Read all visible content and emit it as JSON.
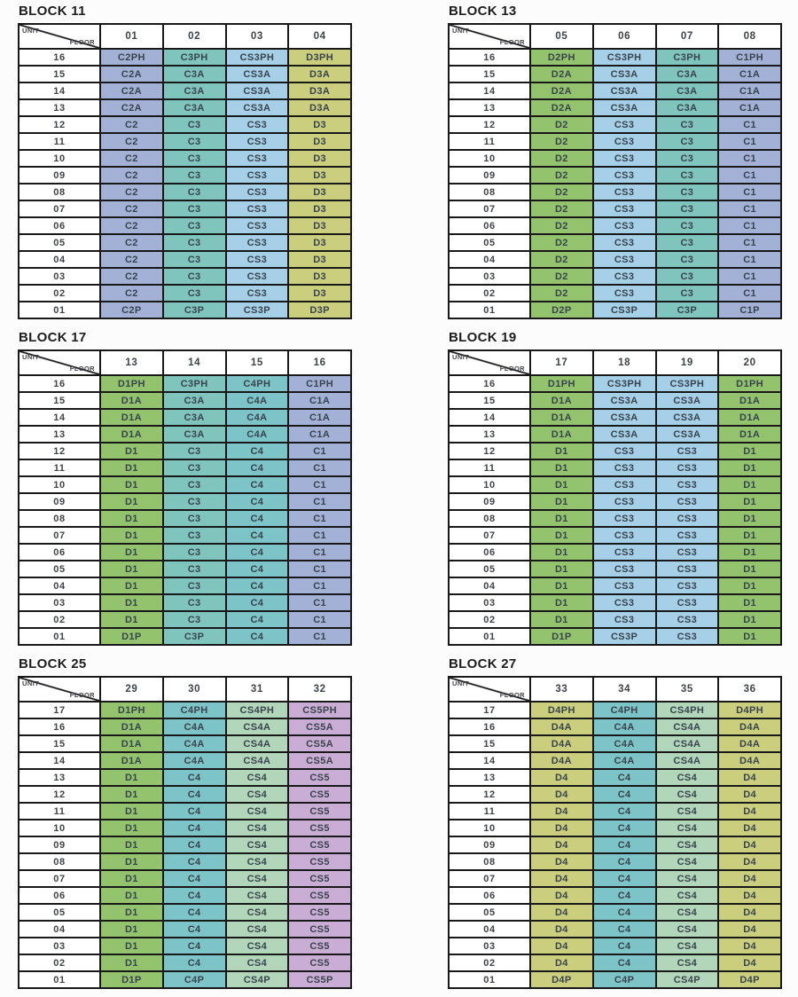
{
  "corner_header": {
    "unit_label": "UNIT",
    "floor_label": "FLOOR"
  },
  "unit_type_colors": {
    "C1": "#a3b1d7",
    "C2": "#a3b1d7",
    "C3": "#80c5bd",
    "C4": "#7dc4c8",
    "CS3": "#a6cfe8",
    "CS4": "#b2d6ba",
    "CS5": "#c9add4",
    "D1": "#93c46d",
    "D2": "#93c46d",
    "D3": "#cbcf7d",
    "D4": "#cbcf7d"
  },
  "border_color": "#181818",
  "blocks": [
    {
      "title": "BLOCK 11",
      "units": [
        "01",
        "02",
        "03",
        "04"
      ],
      "floors": [
        "16",
        "15",
        "14",
        "13",
        "12",
        "11",
        "10",
        "09",
        "08",
        "07",
        "06",
        "05",
        "04",
        "03",
        "02",
        "01"
      ],
      "rows": [
        [
          "C2PH",
          "C3PH",
          "CS3PH",
          "D3PH"
        ],
        [
          "C2A",
          "C3A",
          "CS3A",
          "D3A"
        ],
        [
          "C2A",
          "C3A",
          "CS3A",
          "D3A"
        ],
        [
          "C2A",
          "C3A",
          "CS3A",
          "D3A"
        ],
        [
          "C2",
          "C3",
          "CS3",
          "D3"
        ],
        [
          "C2",
          "C3",
          "CS3",
          "D3"
        ],
        [
          "C2",
          "C3",
          "CS3",
          "D3"
        ],
        [
          "C2",
          "C3",
          "CS3",
          "D3"
        ],
        [
          "C2",
          "C3",
          "CS3",
          "D3"
        ],
        [
          "C2",
          "C3",
          "CS3",
          "D3"
        ],
        [
          "C2",
          "C3",
          "CS3",
          "D3"
        ],
        [
          "C2",
          "C3",
          "CS3",
          "D3"
        ],
        [
          "C2",
          "C3",
          "CS3",
          "D3"
        ],
        [
          "C2",
          "C3",
          "CS3",
          "D3"
        ],
        [
          "C2",
          "C3",
          "CS3",
          "D3"
        ],
        [
          "C2P",
          "C3P",
          "CS3P",
          "D3P"
        ]
      ]
    },
    {
      "title": "BLOCK 13",
      "units": [
        "05",
        "06",
        "07",
        "08"
      ],
      "floors": [
        "16",
        "15",
        "14",
        "13",
        "12",
        "11",
        "10",
        "09",
        "08",
        "07",
        "06",
        "05",
        "04",
        "03",
        "02",
        "01"
      ],
      "rows": [
        [
          "D2PH",
          "CS3PH",
          "C3PH",
          "C1PH"
        ],
        [
          "D2A",
          "CS3A",
          "C3A",
          "C1A"
        ],
        [
          "D2A",
          "CS3A",
          "C3A",
          "C1A"
        ],
        [
          "D2A",
          "CS3A",
          "C3A",
          "C1A"
        ],
        [
          "D2",
          "CS3",
          "C3",
          "C1"
        ],
        [
          "D2",
          "CS3",
          "C3",
          "C1"
        ],
        [
          "D2",
          "CS3",
          "C3",
          "C1"
        ],
        [
          "D2",
          "CS3",
          "C3",
          "C1"
        ],
        [
          "D2",
          "CS3",
          "C3",
          "C1"
        ],
        [
          "D2",
          "CS3",
          "C3",
          "C1"
        ],
        [
          "D2",
          "CS3",
          "C3",
          "C1"
        ],
        [
          "D2",
          "CS3",
          "C3",
          "C1"
        ],
        [
          "D2",
          "CS3",
          "C3",
          "C1"
        ],
        [
          "D2",
          "CS3",
          "C3",
          "C1"
        ],
        [
          "D2",
          "CS3",
          "C3",
          "C1"
        ],
        [
          "D2P",
          "CS3P",
          "C3P",
          "C1P"
        ]
      ]
    },
    {
      "title": "BLOCK 17",
      "units": [
        "13",
        "14",
        "15",
        "16"
      ],
      "floors": [
        "16",
        "15",
        "14",
        "13",
        "12",
        "11",
        "10",
        "09",
        "08",
        "07",
        "06",
        "05",
        "04",
        "03",
        "02",
        "01"
      ],
      "rows": [
        [
          "D1PH",
          "C3PH",
          "C4PH",
          "C1PH"
        ],
        [
          "D1A",
          "C3A",
          "C4A",
          "C1A"
        ],
        [
          "D1A",
          "C3A",
          "C4A",
          "C1A"
        ],
        [
          "D1A",
          "C3A",
          "C4A",
          "C1A"
        ],
        [
          "D1",
          "C3",
          "C4",
          "C1"
        ],
        [
          "D1",
          "C3",
          "C4",
          "C1"
        ],
        [
          "D1",
          "C3",
          "C4",
          "C1"
        ],
        [
          "D1",
          "C3",
          "C4",
          "C1"
        ],
        [
          "D1",
          "C3",
          "C4",
          "C1"
        ],
        [
          "D1",
          "C3",
          "C4",
          "C1"
        ],
        [
          "D1",
          "C3",
          "C4",
          "C1"
        ],
        [
          "D1",
          "C3",
          "C4",
          "C1"
        ],
        [
          "D1",
          "C3",
          "C4",
          "C1"
        ],
        [
          "D1",
          "C3",
          "C4",
          "C1"
        ],
        [
          "D1",
          "C3",
          "C4",
          "C1"
        ],
        [
          "D1P",
          "C3P",
          "C4",
          "C1"
        ]
      ]
    },
    {
      "title": "BLOCK 19",
      "units": [
        "17",
        "18",
        "19",
        "20"
      ],
      "floors": [
        "16",
        "15",
        "14",
        "13",
        "12",
        "11",
        "10",
        "09",
        "08",
        "07",
        "06",
        "05",
        "04",
        "03",
        "02",
        "01"
      ],
      "rows": [
        [
          "D1PH",
          "CS3PH",
          "CS3PH",
          "D1PH"
        ],
        [
          "D1A",
          "CS3A",
          "CS3A",
          "D1A"
        ],
        [
          "D1A",
          "CS3A",
          "CS3A",
          "D1A"
        ],
        [
          "D1A",
          "CS3A",
          "CS3A",
          "D1A"
        ],
        [
          "D1",
          "CS3",
          "CS3",
          "D1"
        ],
        [
          "D1",
          "CS3",
          "CS3",
          "D1"
        ],
        [
          "D1",
          "CS3",
          "CS3",
          "D1"
        ],
        [
          "D1",
          "CS3",
          "CS3",
          "D1"
        ],
        [
          "D1",
          "CS3",
          "CS3",
          "D1"
        ],
        [
          "D1",
          "CS3",
          "CS3",
          "D1"
        ],
        [
          "D1",
          "CS3",
          "CS3",
          "D1"
        ],
        [
          "D1",
          "CS3",
          "CS3",
          "D1"
        ],
        [
          "D1",
          "CS3",
          "CS3",
          "D1"
        ],
        [
          "D1",
          "CS3",
          "CS3",
          "D1"
        ],
        [
          "D1",
          "CS3",
          "CS3",
          "D1"
        ],
        [
          "D1P",
          "CS3P",
          "CS3",
          "D1"
        ]
      ]
    },
    {
      "title": "BLOCK 25",
      "units": [
        "29",
        "30",
        "31",
        "32"
      ],
      "floors": [
        "17",
        "16",
        "15",
        "14",
        "13",
        "12",
        "11",
        "10",
        "09",
        "08",
        "07",
        "06",
        "05",
        "04",
        "03",
        "02",
        "01"
      ],
      "rows": [
        [
          "D1PH",
          "C4PH",
          "CS4PH",
          "CS5PH"
        ],
        [
          "D1A",
          "C4A",
          "CS4A",
          "CS5A"
        ],
        [
          "D1A",
          "C4A",
          "CS4A",
          "CS5A"
        ],
        [
          "D1A",
          "C4A",
          "CS4A",
          "CS5A"
        ],
        [
          "D1",
          "C4",
          "CS4",
          "CS5"
        ],
        [
          "D1",
          "C4",
          "CS4",
          "CS5"
        ],
        [
          "D1",
          "C4",
          "CS4",
          "CS5"
        ],
        [
          "D1",
          "C4",
          "CS4",
          "CS5"
        ],
        [
          "D1",
          "C4",
          "CS4",
          "CS5"
        ],
        [
          "D1",
          "C4",
          "CS4",
          "CS5"
        ],
        [
          "D1",
          "C4",
          "CS4",
          "CS5"
        ],
        [
          "D1",
          "C4",
          "CS4",
          "CS5"
        ],
        [
          "D1",
          "C4",
          "CS4",
          "CS5"
        ],
        [
          "D1",
          "C4",
          "CS4",
          "CS5"
        ],
        [
          "D1",
          "C4",
          "CS4",
          "CS5"
        ],
        [
          "D1",
          "C4",
          "CS4",
          "CS5"
        ],
        [
          "D1P",
          "C4P",
          "CS4P",
          "CS5P"
        ]
      ]
    },
    {
      "title": "BLOCK 27",
      "units": [
        "33",
        "34",
        "35",
        "36"
      ],
      "floors": [
        "17",
        "16",
        "15",
        "14",
        "13",
        "12",
        "11",
        "10",
        "09",
        "08",
        "07",
        "06",
        "05",
        "04",
        "03",
        "02",
        "01"
      ],
      "rows": [
        [
          "D4PH",
          "C4PH",
          "CS4PH",
          "D4PH"
        ],
        [
          "D4A",
          "C4A",
          "CS4A",
          "D4A"
        ],
        [
          "D4A",
          "C4A",
          "CS4A",
          "D4A"
        ],
        [
          "D4A",
          "C4A",
          "CS4A",
          "D4A"
        ],
        [
          "D4",
          "C4",
          "CS4",
          "D4"
        ],
        [
          "D4",
          "C4",
          "CS4",
          "D4"
        ],
        [
          "D4",
          "C4",
          "CS4",
          "D4"
        ],
        [
          "D4",
          "C4",
          "CS4",
          "D4"
        ],
        [
          "D4",
          "C4",
          "CS4",
          "D4"
        ],
        [
          "D4",
          "C4",
          "CS4",
          "D4"
        ],
        [
          "D4",
          "C4",
          "CS4",
          "D4"
        ],
        [
          "D4",
          "C4",
          "CS4",
          "D4"
        ],
        [
          "D4",
          "C4",
          "CS4",
          "D4"
        ],
        [
          "D4",
          "C4",
          "CS4",
          "D4"
        ],
        [
          "D4",
          "C4",
          "CS4",
          "D4"
        ],
        [
          "D4",
          "C4",
          "CS4",
          "D4"
        ],
        [
          "D4P",
          "C4P",
          "CS4P",
          "D4P"
        ]
      ]
    }
  ]
}
